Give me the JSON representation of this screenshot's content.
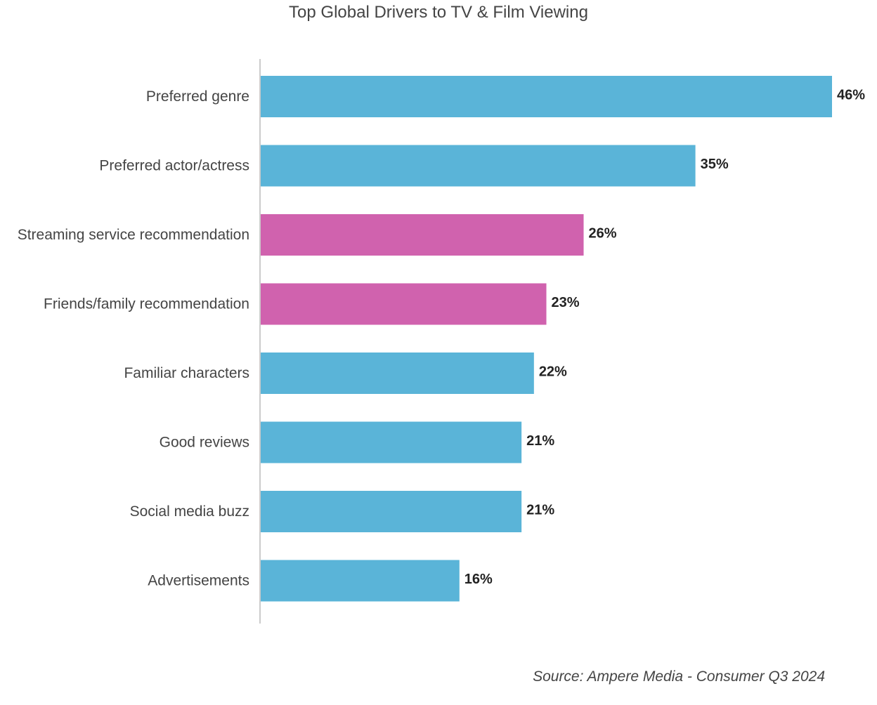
{
  "chart_data": {
    "type": "bar",
    "orientation": "horizontal",
    "title": "Top Global Drivers to TV & Film Viewing",
    "categories": [
      "Preferred genre",
      "Preferred actor/actress",
      "Streaming service recommendation",
      "Friends/family recommendation",
      "Familiar characters",
      "Good reviews",
      "Social media buzz",
      "Advertisements"
    ],
    "values": [
      46,
      35,
      26,
      23,
      22,
      21,
      21,
      16
    ],
    "value_labels": [
      "46%",
      "35%",
      "26%",
      "23%",
      "22%",
      "21%",
      "21%",
      "16%"
    ],
    "highlighted": [
      false,
      false,
      true,
      true,
      false,
      false,
      false,
      false
    ],
    "unit": "%",
    "xlim": [
      0,
      46
    ],
    "grid": false,
    "legend": "none",
    "colors": {
      "default": "#5ab4d8",
      "highlight": "#d062ae",
      "axis": "#cccccc"
    }
  },
  "source": "Source: Ampere Media - Consumer Q3 2024"
}
